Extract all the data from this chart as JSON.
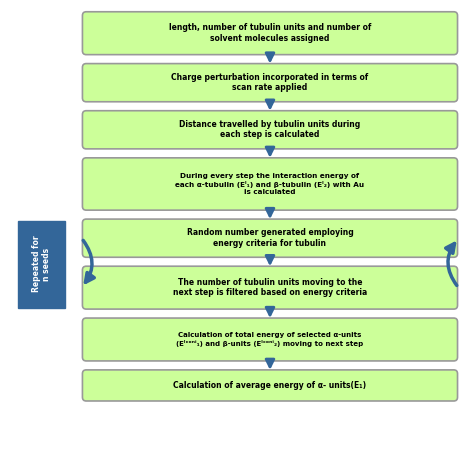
{
  "background_color": "#ffffff",
  "box_fill": "#ccff99",
  "box_edge": "#888888",
  "box_text_color": "#000000",
  "arrow_color": "#336699",
  "side_box_fill": "#336699",
  "side_box_text": "#ffffff",
  "boxes": [
    "length, number of tubulin units and number of\nsolvent molecules assigned",
    "Charge perturbation incorporated in terms of\nscan rate applied",
    "Distance travelled by tubulin units during\neach step is calculated",
    "During every step the interaction energy of\neach α-tubulin (Eᴵ₁) and β-tubulin (Eᴵ₂) with Au\nis calculated",
    "Random number generated employing\nenergy criteria for tubulin",
    "The number of tubulin units moving to the\nnext step is filtered based on energy criteria",
    "Calculation of total energy of selected α-units\n(Eᴵᶜᵒⁿⁱ₁) and β-units (Eᴵᶜᵒⁿⁱ₂) moving to next step",
    "Calculation of average energy of α- units(E₁)"
  ],
  "side_label": "Repeated for\nn seeds",
  "figsize": [
    4.74,
    4.74
  ],
  "dpi": 100
}
